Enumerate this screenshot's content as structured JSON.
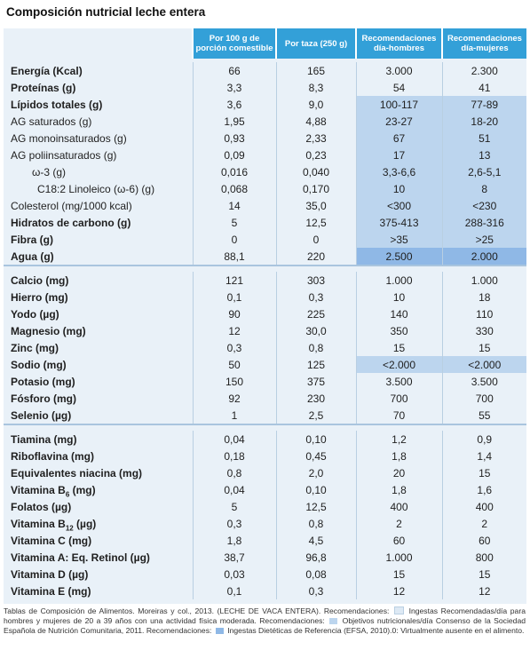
{
  "title": "Composición nutricial leche entera",
  "columns": [
    "Por 100 g de porción comestible",
    "Por taza (250 g)",
    "Recomendaciones día-hombres",
    "Recomendaciones día-mujeres"
  ],
  "colors": {
    "header": "#33a0d8",
    "panel": "#e9f1f8",
    "objetivos": "#bcd5ee",
    "ingestas_dieteticas": "#8fb8e6"
  },
  "groups": [
    {
      "rows": [
        {
          "name": "Energía (Kcal)",
          "bold": true,
          "indent": 0,
          "v100": "66",
          "taza": "165",
          "hombres": "3.000",
          "mujeres": "2.300",
          "hl": ""
        },
        {
          "name": "Proteínas (g)",
          "bold": true,
          "indent": 0,
          "v100": "3,3",
          "taza": "8,3",
          "hombres": "54",
          "mujeres": "41",
          "hl": ""
        },
        {
          "name": "Lípidos totales (g)",
          "bold": true,
          "indent": 0,
          "v100": "3,6",
          "taza": "9,0",
          "hombres": "100-117",
          "mujeres": "77-89",
          "hl": "hl"
        },
        {
          "name": "AG saturados (g)",
          "bold": false,
          "indent": 0,
          "v100": "1,95",
          "taza": "4,88",
          "hombres": "23-27",
          "mujeres": "18-20",
          "hl": "hl"
        },
        {
          "name": "AG monoinsaturados (g)",
          "bold": false,
          "indent": 0,
          "v100": "0,93",
          "taza": "2,33",
          "hombres": "67",
          "mujeres": "51",
          "hl": "hl"
        },
        {
          "name": "AG poliinsaturados (g)",
          "bold": false,
          "indent": 0,
          "v100": "0,09",
          "taza": "0,23",
          "hombres": "17",
          "mujeres": "13",
          "hl": "hl"
        },
        {
          "name": "ω-3 (g)",
          "bold": false,
          "indent": 1,
          "v100": "0,016",
          "taza": "0,040",
          "hombres": "3,3-6,6",
          "mujeres": "2,6-5,1",
          "hl": "hl"
        },
        {
          "name": "C18:2 Linoleico (ω-6) (g)",
          "bold": false,
          "indent": 2,
          "v100": "0,068",
          "taza": "0,170",
          "hombres": "10",
          "mujeres": "8",
          "hl": "hl"
        },
        {
          "name": "Colesterol (mg/1000 kcal)",
          "bold": false,
          "indent": 0,
          "v100": "14",
          "taza": "35,0",
          "hombres": "<300",
          "mujeres": "<230",
          "hl": "hl"
        },
        {
          "name": "Hidratos de carbono (g)",
          "bold": true,
          "indent": 0,
          "v100": "5",
          "taza": "12,5",
          "hombres": "375-413",
          "mujeres": "288-316",
          "hl": "hl"
        },
        {
          "name": "Fibra (g)",
          "bold": true,
          "indent": 0,
          "v100": "0",
          "taza": "0",
          "hombres": ">35",
          "mujeres": ">25",
          "hl": "hl"
        },
        {
          "name": "Agua (g)",
          "bold": true,
          "indent": 0,
          "v100": "88,1",
          "taza": "220",
          "hombres": "2.500",
          "mujeres": "2.000",
          "hl": "hl2"
        }
      ]
    },
    {
      "rows": [
        {
          "name": "Calcio (mg)",
          "bold": true,
          "indent": 0,
          "v100": "121",
          "taza": "303",
          "hombres": "1.000",
          "mujeres": "1.000",
          "hl": ""
        },
        {
          "name": "Hierro (mg)",
          "bold": true,
          "indent": 0,
          "v100": "0,1",
          "taza": "0,3",
          "hombres": "10",
          "mujeres": "18",
          "hl": ""
        },
        {
          "name": "Yodo (µg)",
          "bold": true,
          "indent": 0,
          "v100": "90",
          "taza": "225",
          "hombres": "140",
          "mujeres": "110",
          "hl": ""
        },
        {
          "name": "Magnesio (mg)",
          "bold": true,
          "indent": 0,
          "v100": "12",
          "taza": "30,0",
          "hombres": "350",
          "mujeres": "330",
          "hl": ""
        },
        {
          "name": "Zinc (mg)",
          "bold": true,
          "indent": 0,
          "v100": "0,3",
          "taza": "0,8",
          "hombres": "15",
          "mujeres": "15",
          "hl": ""
        },
        {
          "name": "Sodio (mg)",
          "bold": true,
          "indent": 0,
          "v100": "50",
          "taza": "125",
          "hombres": "<2.000",
          "mujeres": "<2.000",
          "hl": "hl"
        },
        {
          "name": "Potasio (mg)",
          "bold": true,
          "indent": 0,
          "v100": "150",
          "taza": "375",
          "hombres": "3.500",
          "mujeres": "3.500",
          "hl": ""
        },
        {
          "name": "Fósforo (mg)",
          "bold": true,
          "indent": 0,
          "v100": "92",
          "taza": "230",
          "hombres": "700",
          "mujeres": "700",
          "hl": ""
        },
        {
          "name": "Selenio (µg)",
          "bold": true,
          "indent": 0,
          "v100": "1",
          "taza": "2,5",
          "hombres": "70",
          "mujeres": "55",
          "hl": ""
        }
      ]
    },
    {
      "rows": [
        {
          "name": "Tiamina (mg)",
          "bold": true,
          "indent": 0,
          "v100": "0,04",
          "taza": "0,10",
          "hombres": "1,2",
          "mujeres": "0,9",
          "hl": ""
        },
        {
          "name": "Riboflavina (mg)",
          "bold": true,
          "indent": 0,
          "v100": "0,18",
          "taza": "0,45",
          "hombres": "1,8",
          "mujeres": "1,4",
          "hl": ""
        },
        {
          "name": "Equivalentes niacina (mg)",
          "bold": true,
          "indent": 0,
          "v100": "0,8",
          "taza": "2,0",
          "hombres": "20",
          "mujeres": "15",
          "hl": ""
        },
        {
          "name": "Vitamina B",
          "sub": "6",
          "suffix": " (mg)",
          "bold": true,
          "indent": 0,
          "v100": "0,04",
          "taza": "0,10",
          "hombres": "1,8",
          "mujeres": "1,6",
          "hl": ""
        },
        {
          "name": "Folatos (µg)",
          "bold": true,
          "indent": 0,
          "v100": "5",
          "taza": "12,5",
          "hombres": "400",
          "mujeres": "400",
          "hl": ""
        },
        {
          "name": "Vitamina B",
          "sub": "12",
          "suffix": " (µg)",
          "bold": true,
          "indent": 0,
          "v100": "0,3",
          "taza": "0,8",
          "hombres": "2",
          "mujeres": "2",
          "hl": ""
        },
        {
          "name": "Vitamina C (mg)",
          "bold": true,
          "indent": 0,
          "v100": "1,8",
          "taza": "4,5",
          "hombres": "60",
          "mujeres": "60",
          "hl": ""
        },
        {
          "name": "Vitamina A: Eq. Retinol (µg)",
          "bold": true,
          "indent": 0,
          "v100": "38,7",
          "taza": "96,8",
          "hombres": "1.000",
          "mujeres": "800",
          "hl": ""
        },
        {
          "name": "Vitamina D (µg)",
          "bold": true,
          "indent": 0,
          "v100": "0,03",
          "taza": "0,08",
          "hombres": "15",
          "mujeres": "15",
          "hl": ""
        },
        {
          "name": "Vitamina E (mg)",
          "bold": true,
          "indent": 0,
          "v100": "0,1",
          "taza": "0,3",
          "hombres": "12",
          "mujeres": "12",
          "hl": ""
        }
      ]
    }
  ],
  "footnote": {
    "part1": "Tablas de Composición de Alimentos. Moreiras y col., 2013. (LECHE DE VACA ENTERA). Recomendaciones:",
    "legend_ingestas": "Ingestas Recomendadas/día para hombres y mujeres de 20 a 39 años con una actividad física moderada. Recomendaciones:",
    "legend_objetivos": "Objetivos nutricionales/día Consenso de la Sociedad Española de Nutrición Comunitaria, 2011. Recomendaciones:",
    "legend_dieteticas": "Ingestas Dietéticas de Referencia (EFSA, 2010).0: Virtualmente ausente en el alimento."
  }
}
